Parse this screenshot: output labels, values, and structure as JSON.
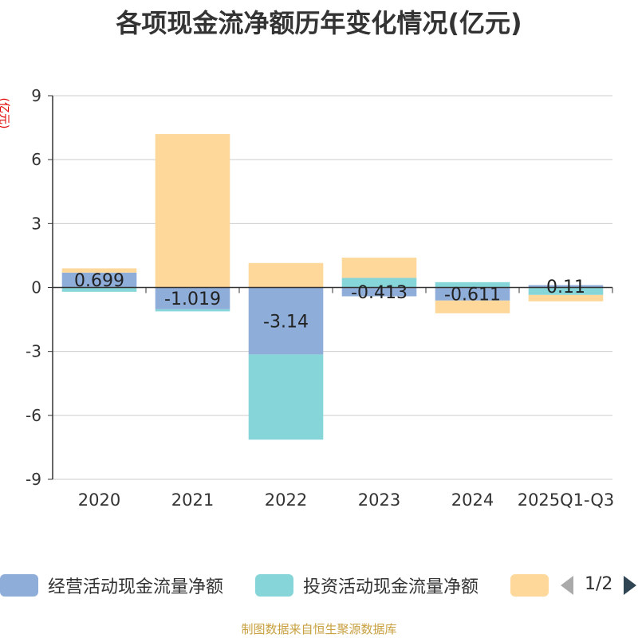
{
  "title": "各项现金流净额历年变化情况(亿元)",
  "unit_label": "(亿元)",
  "source_note": "制图数据来自恒生聚源数据库",
  "legend": {
    "page": "1/2",
    "items": [
      {
        "label": "经营活动现金流量净额",
        "color": "#8eadd9"
      },
      {
        "label": "投资活动现金流量净额",
        "color": "#86d5d8"
      },
      {
        "label": "",
        "color": "#fdd89a"
      }
    ]
  },
  "chart_data": {
    "type": "bar",
    "stacked": true,
    "categories": [
      "2020",
      "2021",
      "2022",
      "2023",
      "2024",
      "2025Q1-Q3"
    ],
    "ylim": [
      -9,
      9
    ],
    "yticks": [
      9,
      6,
      3,
      0,
      -3,
      -6,
      -9
    ],
    "grid": true,
    "series": [
      {
        "name": "经营活动现金流量净额",
        "color": "#8eadd9",
        "values": [
          0.699,
          -1.019,
          -3.14,
          -0.413,
          -0.611,
          0.11
        ],
        "data_labels": [
          "0.699",
          "-1.019",
          "-3.14",
          "-0.413",
          "-0.611",
          "0.11"
        ]
      },
      {
        "name": "投资活动现金流量净额",
        "color": "#86d5d8",
        "values": [
          -0.2,
          -0.1,
          -4.0,
          0.45,
          0.25,
          -0.35
        ]
      },
      {
        "color": "#fdd89a",
        "values": [
          0.2,
          7.2,
          1.15,
          0.95,
          -0.6,
          -0.3
        ]
      }
    ]
  }
}
